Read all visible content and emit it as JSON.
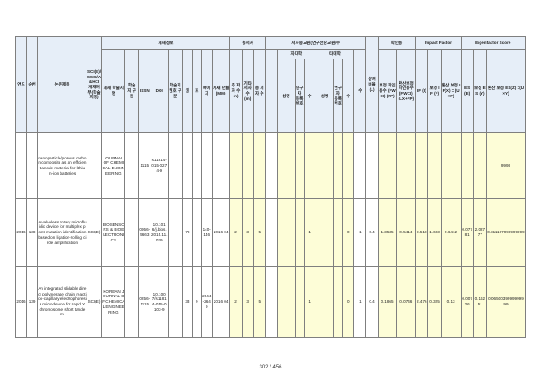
{
  "header": {
    "group_info": "게재정보",
    "group_authors": "총저자",
    "group_dept": "저자중교원(연구전담교원)수",
    "group_own": "자대학",
    "group_other": "타대학",
    "group_ratio": "학인용",
    "group_if": "Impact Factor",
    "group_ef": "Eigenfactor Score",
    "col_year": "연도",
    "col_seq": "순번",
    "col_title": "논문제목",
    "col_scie": "SCI(E)/SSCI/A&HCI 게재여부(학술지명)",
    "col_jname": "게재 학술지 명",
    "col_jtype": "학술 지 구분",
    "col_issn": "ISSN",
    "col_doi": "DOI",
    "col_class": "학술지 권호 구분",
    "col_vol": "권",
    "col_no": "호",
    "col_pages": "페이지",
    "col_date": "게재 년월(MM)",
    "col_n_total": "주 저자 수 (n)",
    "col_n_other": "기타 저자 수 (m)",
    "col_n_all": "총 저자 수",
    "col_own_role": "성명",
    "col_own_dept": "연구 자 등록번호",
    "col_own_n": "수",
    "col_oth_role": "성명",
    "col_oth_dept": "연구 자 등록번호",
    "col_oth_n": "수",
    "col_sum": "(B)",
    "col_a": "수",
    "col_ratio": "참여 비율 (L)",
    "col_cit1": "보정 피인 용수 (FWCI) (FP)",
    "col_cit2": "환산보정피인용수 (FWCI) (LX+FP)",
    "col_if1": "IF (I)",
    "col_if2": "보정 IF (F)",
    "col_if3": "환산 보정 IF(X) = (U×F)",
    "col_ef1": "ES (E)",
    "col_ef2": "보정 ES (Y)",
    "col_ef3": "환산 보정 ES(Z) =(U×Y)"
  },
  "rows": [
    {
      "year": "",
      "seq": "",
      "title": "nanoparticle/porous carbon composite as an efficient anode material for lithium-ion batteries",
      "scie": "",
      "jname": "JOURNAL OF CHEMICAL ENGINEERING",
      "jtype": "",
      "issn": "1115",
      "doi": "s11814-015-0274-9",
      "class": "",
      "vol": "",
      "no": "",
      "pages": "",
      "date": "",
      "n_total": "",
      "n_other": "",
      "n_all": "",
      "own_n": "",
      "oth_n": "",
      "sum": "",
      "a": "",
      "ratio": "",
      "cit1": "",
      "cit2": "",
      "if1": "",
      "if2": "",
      "if3": "",
      "ef1": "",
      "ef2": "",
      "ef3": "9998"
    },
    {
      "year": "2016",
      "seq": "138",
      "title": "A valveless rotary microfluidic device for multiplex point mutation identification based on ligation-rolling circle amplification",
      "scie": "SCI(E)",
      "jname": "BIOSENSORS & BIOELECTRONICS",
      "jtype": "",
      "issn": "0956-5663",
      "doi": "10.1016/j.bios.2015.11.039",
      "class": "",
      "vol": "78",
      "no": "",
      "pages": "140-146",
      "date": "2016 04",
      "n_total": "2",
      "n_other": "3",
      "n_all": "5",
      "own_n": "1",
      "oth_n": "0",
      "sum": "1",
      "a": "",
      "ratio": "0.4",
      "cit1": "1.3535",
      "cit2": "0.5414",
      "if1": "9.518",
      "if2": "1.603",
      "if3": "0.6412",
      "ef1": "0.07781",
      "ef2": "2.02777",
      "ef3": "0.811107999999999"
    },
    {
      "year": "2016",
      "seq": "139",
      "title": "An integrated slidable direct polymerase chain reaction-capillary electrophoresis microdevice for rapid Y chromosome short tandem",
      "scie": "SCI(E)",
      "jname": "KOREAN JOURNAL OF CHEMICAL ENGINEERING",
      "jtype": "",
      "issn": "0256-1115",
      "doi": "10.1007/s11814-015-0103-9",
      "class": "",
      "vol": "33",
      "no": "9",
      "pages": "2644-2649",
      "date": "2016 04",
      "n_total": "2",
      "n_other": "3",
      "n_all": "5",
      "own_n": "1",
      "oth_n": "0",
      "sum": "1",
      "a": "",
      "ratio": "0.4",
      "cit1": "0.1865",
      "cit2": "0.0746",
      "if1": "2.476",
      "if2": "0.325",
      "if3": "0.13",
      "ef1": "0.00726",
      "ef2": "0.16251",
      "ef3": "0.0650039999999999"
    }
  ],
  "footer": {
    "page": "302 / 456"
  }
}
